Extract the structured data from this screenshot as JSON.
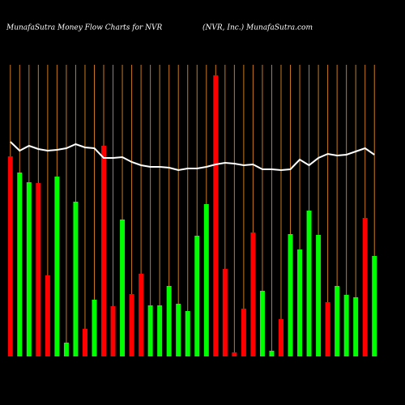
{
  "chart_data": {
    "type": "bar",
    "title": "MunafaSutra  Money Flow  Charts for NVR",
    "subtitle": "(NVR, Inc.) MunafaSutra.com",
    "categories": [
      null,
      null,
      null,
      null,
      null,
      null,
      null,
      null,
      null,
      null,
      null,
      null,
      null,
      null,
      null,
      null,
      null,
      null,
      null,
      null,
      null,
      null,
      null,
      null,
      null,
      null,
      null,
      null,
      null,
      null,
      null,
      null,
      null,
      null,
      null,
      null,
      null,
      null,
      null,
      null
    ],
    "values": [
      247,
      227,
      215,
      214,
      100,
      222,
      17,
      191,
      34,
      70,
      260,
      62,
      169,
      77,
      102,
      63,
      63,
      87,
      65,
      56,
      149,
      188,
      347,
      108,
      5,
      59,
      153,
      81,
      7,
      46,
      151,
      132,
      180,
      150,
      67,
      87,
      76,
      73,
      171,
      124
    ],
    "colors": [
      "#ff0000",
      "#00ff00",
      "#00ff00",
      "#ff0000",
      "#ff0000",
      "#00ff00",
      "#00ff00",
      "#00ff00",
      "#ff0000",
      "#00ff00",
      "#ff0000",
      "#ff0000",
      "#00ff00",
      "#ff0000",
      "#ff0000",
      "#00ff00",
      "#00ff00",
      "#00ff00",
      "#00ff00",
      "#00ff00",
      "#00ff00",
      "#00ff00",
      "#ff0000",
      "#ff0000",
      "#ff0000",
      "#ff0000",
      "#ff0000",
      "#00ff00",
      "#00ff00",
      "#ff0000",
      "#00ff00",
      "#00ff00",
      "#00ff00",
      "#00ff00",
      "#ff0000",
      "#00ff00",
      "#00ff00",
      "#00ff00",
      "#ff0000",
      "#00ff00"
    ],
    "line": {
      "values": [
        265,
        254,
        260,
        256,
        254,
        255,
        257,
        262,
        258,
        257,
        245,
        245,
        246,
        240,
        236,
        234,
        234,
        233,
        230,
        232,
        232,
        234,
        237,
        239,
        238,
        236,
        237,
        231,
        231,
        230,
        231,
        243,
        236,
        245,
        250,
        248,
        249,
        253,
        257,
        249
      ],
      "color": "#ffffff"
    },
    "ylim": [
      0,
      360
    ],
    "grid": true,
    "grid_color": "#c87a1e"
  }
}
